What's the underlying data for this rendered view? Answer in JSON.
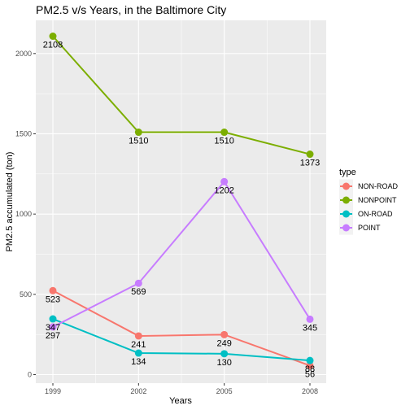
{
  "chart_data": {
    "type": "line",
    "title": "PM2.5 v/s Years, in the Baltimore City",
    "xlabel": "Years",
    "ylabel": "PM2.5 accumulated (ton)",
    "x": [
      "1999",
      "2002",
      "2005",
      "2008"
    ],
    "x_values": [
      1999,
      2002,
      2005,
      2008
    ],
    "xlim": [
      1999,
      2008
    ],
    "ylim": [
      0,
      2108
    ],
    "y_ticks": [
      0,
      500,
      1000,
      1500,
      2000
    ],
    "grid": true,
    "legend_placement": "right",
    "legend_title": "type",
    "series": [
      {
        "name": "NON-ROAD",
        "color": "#F8766D",
        "values": [
          523,
          241,
          249,
          56
        ],
        "labels": [
          "523",
          "241",
          "249",
          "56"
        ]
      },
      {
        "name": "NONPOINT",
        "color": "#7CAE00",
        "values": [
          2108,
          1510,
          1510,
          1373
        ],
        "labels": [
          "2108",
          "1510",
          "1510",
          "1373"
        ]
      },
      {
        "name": "ON-ROAD",
        "color": "#00BFC4",
        "values": [
          347,
          134,
          130,
          88
        ],
        "labels": [
          "347",
          "134",
          "130",
          "88"
        ]
      },
      {
        "name": "POINT",
        "color": "#C77CFF",
        "values": [
          297,
          569,
          1202,
          345
        ],
        "labels": [
          "297",
          "569",
          "1202",
          "345"
        ]
      }
    ]
  }
}
